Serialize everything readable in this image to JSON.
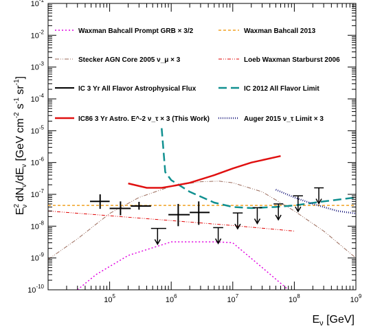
{
  "chart_data": {
    "type": "line",
    "x_scale": "log",
    "y_scale": "log",
    "xlim": [
      10000,
      1000000000
    ],
    "ylim": [
      1e-10,
      0.1
    ],
    "xlabel": "E_ν [GeV]",
    "ylabel": "E_ν^2 dN_ν/dE_ν [GeV cm^-2 s^-1 sr^-1]",
    "x_ticks": [
      {
        "value": 100000,
        "base": "10",
        "exp": "5"
      },
      {
        "value": 1000000,
        "base": "10",
        "exp": "6"
      },
      {
        "value": 10000000,
        "base": "10",
        "exp": "7"
      },
      {
        "value": 100000000,
        "base": "10",
        "exp": "8"
      },
      {
        "value": 1000000000,
        "base": "10",
        "exp": "9"
      }
    ],
    "y_ticks": [
      {
        "value": 1e-10,
        "base": "10",
        "exp": "-10"
      },
      {
        "value": 1e-09,
        "base": "10",
        "exp": "-9"
      },
      {
        "value": 1e-08,
        "base": "10",
        "exp": "-8"
      },
      {
        "value": 1e-07,
        "base": "10",
        "exp": "-7"
      },
      {
        "value": 1e-06,
        "base": "10",
        "exp": "-6"
      },
      {
        "value": 1e-05,
        "base": "10",
        "exp": "-5"
      },
      {
        "value": 0.0001,
        "base": "10",
        "exp": "-4"
      },
      {
        "value": 0.001,
        "base": "10",
        "exp": "-3"
      },
      {
        "value": 0.01,
        "base": "10",
        "exp": "-2"
      },
      {
        "value": 0.1,
        "base": "10",
        "exp": "-1"
      }
    ],
    "legend": [
      {
        "id": "wb_grb",
        "label": "Waxman Bahcall Prompt GRB × 3/2",
        "color": "#e000e0",
        "dash": "2,3",
        "width": 1.5
      },
      {
        "id": "wb2013",
        "label": "Waxman Bahcall 2013",
        "color": "#f0a020",
        "dash": "4,3",
        "width": 1.5
      },
      {
        "id": "stecker",
        "label": "Stecker AGN Core 2005 ν_μ × 3",
        "color": "#9a6a5a",
        "dash": "6,2,1,2,1,2",
        "width": 1
      },
      {
        "id": "loeb",
        "label": "Loeb Waxman Starburst 2006",
        "color": "#e00000",
        "dash": "5,2,1,2,1,2",
        "width": 1
      },
      {
        "id": "ic3yr",
        "label": "IC 3 Yr All Flavor Astrophysical Flux",
        "color": "#000000",
        "dash": "",
        "width": 2
      },
      {
        "id": "ic2012",
        "label": "IC 2012 All Flavor Limit",
        "color": "#109090",
        "dash": "12,6",
        "width": 2.5
      },
      {
        "id": "ic86",
        "label": "IC86 3 Yr Astro. E^-2 ν_τ × 3 (This Work)",
        "color": "#e01010",
        "dash": "",
        "width": 2.5
      },
      {
        "id": "auger",
        "label": "Auger 2015 ν_τ Limit × 3",
        "color": "#202080",
        "dash": "1,2",
        "width": 2.5
      }
    ],
    "series": [
      {
        "id": "wb_grb",
        "points": [
          [
            30000,
            1e-10
          ],
          [
            60000,
            3e-10
          ],
          [
            200000,
            1.2e-09
          ],
          [
            1000000,
            3.2e-09
          ],
          [
            6000000,
            3.2e-09
          ],
          [
            10000000,
            3e-09
          ],
          [
            30000000,
            5e-10
          ],
          [
            80000000,
            1e-10
          ]
        ]
      },
      {
        "id": "wb2013",
        "points": [
          [
            10000,
            4.5e-08
          ],
          [
            1000000000,
            4.5e-08
          ]
        ]
      },
      {
        "id": "stecker",
        "points": [
          [
            10000,
            9e-10
          ],
          [
            30000,
            4e-09
          ],
          [
            100000,
            2.5e-08
          ],
          [
            300000,
            8e-08
          ],
          [
            1000000,
            1.8e-07
          ],
          [
            3000000,
            2.5e-07
          ],
          [
            6000000,
            2.6e-07
          ],
          [
            10000000,
            2.3e-07
          ],
          [
            30000000,
            1.2e-07
          ],
          [
            100000000,
            3e-08
          ],
          [
            300000000,
            7e-09
          ],
          [
            1000000000,
            1e-09
          ]
        ]
      },
      {
        "id": "loeb",
        "points": [
          [
            10000,
            3e-08
          ],
          [
            1000000,
            1.5e-08
          ],
          [
            10000000,
            1.05e-08
          ],
          [
            100000000,
            7e-09
          ]
        ]
      },
      {
        "id": "ic2012",
        "points": [
          [
            700000,
            1.2e-05
          ],
          [
            800000,
            5e-07
          ],
          [
            1000000,
            2.8e-07
          ],
          [
            2000000,
            1.2e-07
          ],
          [
            5000000,
            5.5e-08
          ],
          [
            10000000,
            4e-08
          ],
          [
            20000000,
            3.7e-08
          ],
          [
            50000000,
            4e-08
          ],
          [
            100000000,
            4.5e-08
          ],
          [
            300000000,
            6e-08
          ],
          [
            1000000000,
            8e-08
          ]
        ]
      },
      {
        "id": "ic86",
        "points": [
          [
            200000,
            2.2e-07
          ],
          [
            400000,
            1.6e-07
          ],
          [
            700000,
            1.6e-07
          ],
          [
            1000000,
            1.8e-07
          ],
          [
            2000000,
            2.3e-07
          ],
          [
            5000000,
            4e-07
          ],
          [
            10000000,
            6.5e-07
          ],
          [
            20000000,
            1e-06
          ],
          [
            60000000,
            1.6e-06
          ]
        ]
      },
      {
        "id": "auger",
        "points": [
          [
            50000000,
            1.4e-07
          ],
          [
            100000000,
            8e-08
          ],
          [
            200000000,
            5e-08
          ],
          [
            500000000,
            3e-08
          ],
          [
            1000000000,
            2.5e-08
          ]
        ]
      }
    ],
    "ic3yr_points": [
      {
        "x": 70000,
        "xlo": 48000,
        "xhi": 100000,
        "y": 6e-08,
        "ylo": 3.5e-08,
        "yhi": 1e-07
      },
      {
        "x": 150000,
        "xlo": 100000,
        "xhi": 220000,
        "y": 3.6e-08,
        "ylo": 2.2e-08,
        "yhi": 6e-08
      },
      {
        "x": 300000,
        "xlo": 220000,
        "xhi": 470000,
        "y": 4.3e-08,
        "ylo": 3.3e-08,
        "yhi": 5.8e-08
      },
      {
        "x": 1300000,
        "xlo": 900000,
        "xhi": 2000000,
        "y": 2.3e-08,
        "ylo": 1e-08,
        "yhi": 5e-08
      },
      {
        "x": 2800000,
        "xlo": 2000000,
        "xhi": 4200000,
        "y": 2.7e-08,
        "ylo": 1.1e-08,
        "yhi": 6e-08
      }
    ],
    "ic3yr_upper_limits": [
      {
        "x": 600000,
        "xlo": 470000,
        "xhi": 830000,
        "y": 8.5e-09
      },
      {
        "x": 5800000,
        "xlo": 4800000,
        "xhi": 7000000,
        "y": 9e-09
      },
      {
        "x": 12000000,
        "xlo": 10000000,
        "xhi": 14500000,
        "y": 2.6e-08
      },
      {
        "x": 25000000,
        "xlo": 21000000,
        "xhi": 30000000,
        "y": 3.8e-08
      },
      {
        "x": 55000000,
        "xlo": 46000000,
        "xhi": 66000000,
        "y": 5e-08
      },
      {
        "x": 115000000,
        "xlo": 95000000,
        "xhi": 138000000,
        "y": 9e-08
      },
      {
        "x": 250000000,
        "xlo": 210000000,
        "xhi": 300000000,
        "y": 1.6e-07
      }
    ]
  }
}
